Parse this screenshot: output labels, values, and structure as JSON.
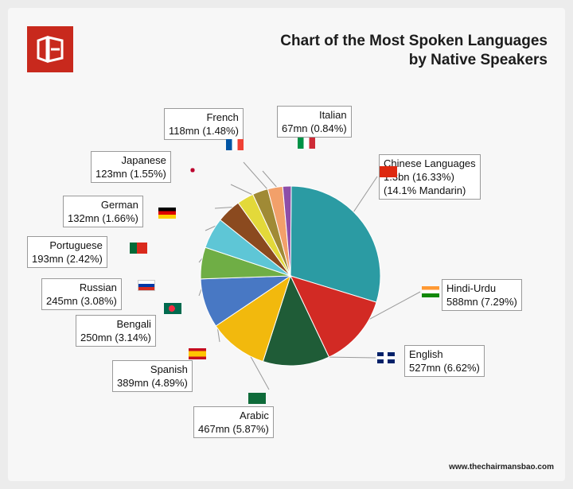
{
  "header": {
    "title_line1": "Chart of the Most Spoken Languages",
    "title_line2": "by Native Speakers"
  },
  "footer": {
    "source": "www.thechairmansbao.com"
  },
  "chart_data": {
    "type": "pie",
    "title": "Chart of the Most Spoken Languages by Native Speakers",
    "slices": [
      {
        "name": "Chinese Languages",
        "value": 16.33,
        "lines": [
          "Chinese Languages",
          "1.3bn (16.33%)",
          "(14.1% Mandarin)"
        ],
        "color": "#2b9ba3",
        "flag": "china-flag-icon"
      },
      {
        "name": "Hindi-Urdu",
        "value": 7.29,
        "lines": [
          "Hindi-Urdu",
          "588mn (7.29%)"
        ],
        "color": "#d22a24",
        "flag": "india-flag-icon"
      },
      {
        "name": "English",
        "value": 6.62,
        "lines": [
          "English",
          "527mn (6.62%)"
        ],
        "color": "#1f5c37",
        "flag": "uk-flag-icon"
      },
      {
        "name": "Arabic",
        "value": 5.87,
        "lines": [
          "Arabic",
          "467mn (5.87%)"
        ],
        "color": "#f2b90d",
        "flag": "saudi-flag-icon"
      },
      {
        "name": "Spanish",
        "value": 4.89,
        "lines": [
          "Spanish",
          "389mn (4.89%)"
        ],
        "color": "#4878c4",
        "flag": "spain-flag-icon"
      },
      {
        "name": "Bengali",
        "value": 3.14,
        "lines": [
          "Bengali",
          "250mn (3.14%)"
        ],
        "color": "#6fae45",
        "flag": "bangladesh-flag-icon"
      },
      {
        "name": "Russian",
        "value": 3.08,
        "lines": [
          "Russian",
          "245mn (3.08%)"
        ],
        "color": "#5ec6d6",
        "flag": "russia-flag-icon"
      },
      {
        "name": "Portuguese",
        "value": 2.42,
        "lines": [
          "Portuguese",
          "193mn (2.42%)"
        ],
        "color": "#8b4a1f",
        "flag": "portugal-flag-icon"
      },
      {
        "name": "German",
        "value": 1.66,
        "lines": [
          "German",
          "132mn (1.66%)"
        ],
        "color": "#e3d93a",
        "flag": "germany-flag-icon"
      },
      {
        "name": "Japanese",
        "value": 1.55,
        "lines": [
          "Japanese",
          "123mn (1.55%)"
        ],
        "color": "#a08a35",
        "flag": "japan-flag-icon"
      },
      {
        "name": "French",
        "value": 1.48,
        "lines": [
          "French",
          "118mn (1.48%)"
        ],
        "color": "#f2a06a",
        "flag": "france-flag-icon"
      },
      {
        "name": "Italian",
        "value": 0.84,
        "lines": [
          "Italian",
          "67mn (0.84%)"
        ],
        "color": "#8e4ea8",
        "flag": "italy-flag-icon"
      }
    ]
  }
}
